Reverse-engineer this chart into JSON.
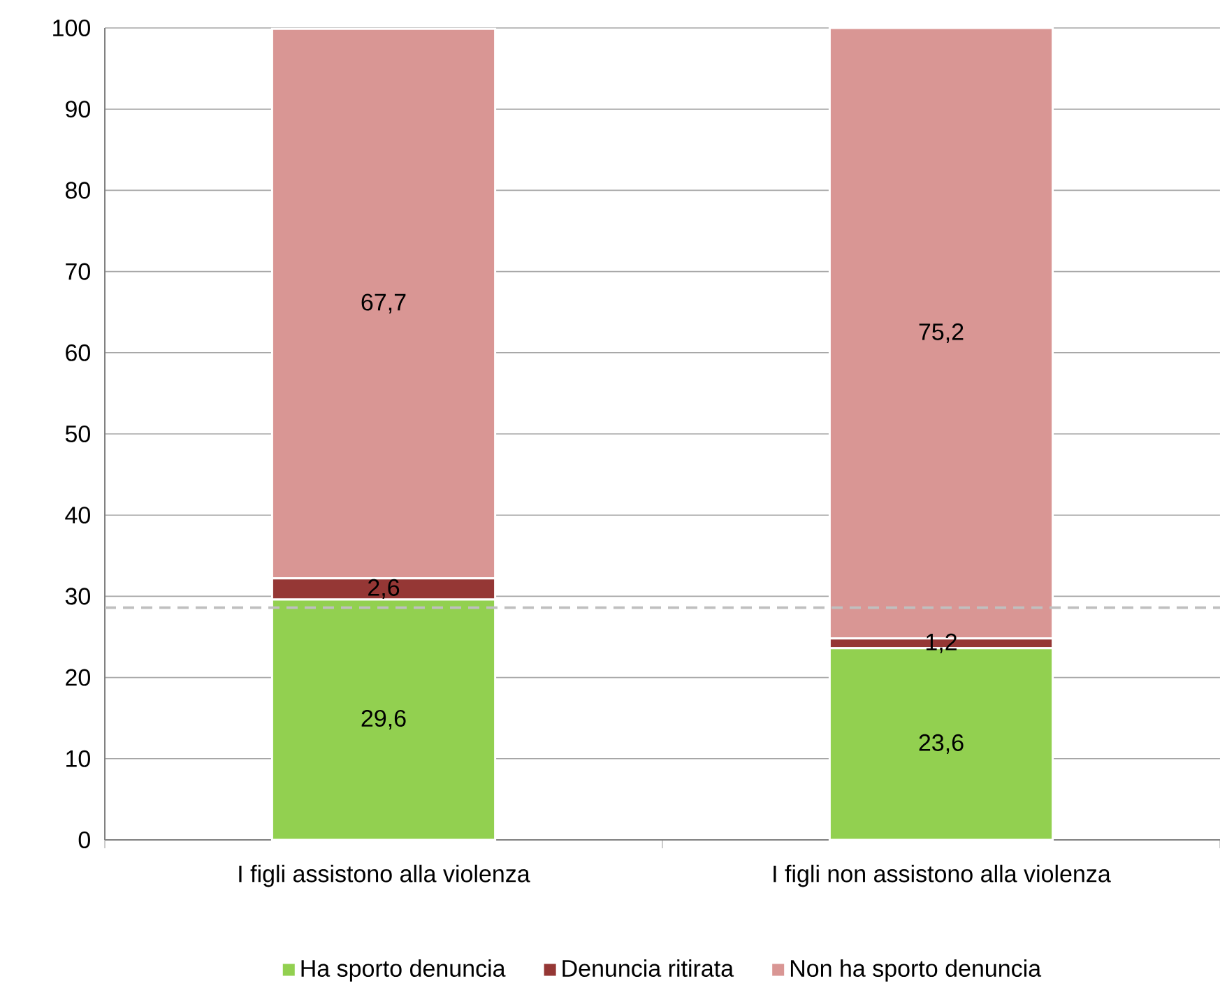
{
  "chart_data": {
    "type": "bar",
    "stacked": true,
    "categories": [
      "I figli assistono alla violenza",
      "I figli non assistono alla violenza"
    ],
    "series": [
      {
        "name": "Ha sporto denuncia",
        "color": "#92d050",
        "values": [
          29.6,
          23.6
        ],
        "value_labels": [
          "29,6",
          "23,6"
        ]
      },
      {
        "name": "Denuncia ritirata",
        "color": "#953735",
        "values": [
          2.6,
          1.2
        ],
        "value_labels": [
          "2,6",
          "1,2"
        ]
      },
      {
        "name": "Non ha sporto denuncia",
        "color": "#d99694",
        "values": [
          67.7,
          75.2
        ],
        "value_labels": [
          "67,7",
          "75,2"
        ]
      }
    ],
    "ylim": [
      0,
      100
    ],
    "yticks": [
      0,
      10,
      20,
      30,
      40,
      50,
      60,
      70,
      80,
      90,
      100
    ],
    "grid": "y",
    "legend": "bottom",
    "ref_lines": [
      {
        "axis": "y",
        "value": 28.6,
        "color": "#bfbfbf",
        "line_style": "dashed"
      }
    ]
  }
}
